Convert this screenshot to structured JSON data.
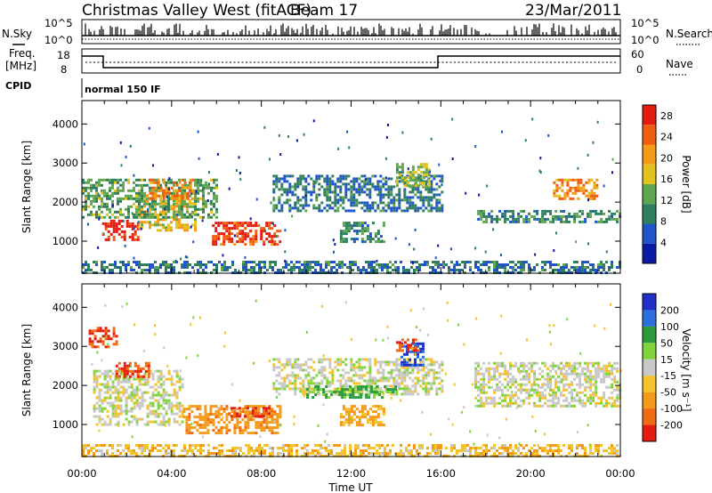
{
  "header": {
    "title": "Christmas Valley West (fitACF)",
    "beam": "Beam 17",
    "date": "23/Mar/2011"
  },
  "summary_panels": {
    "nsky_label": "N.Sky",
    "nsearch_label": "N.Search",
    "freq_label_1": "Freq.",
    "freq_label_2": "[MHz]",
    "nave_label": "Nave",
    "cpid_label": "CPID",
    "cpid_value": "normal 150 IF",
    "noise_left_ticks": [
      "10^5",
      "10^0"
    ],
    "noise_right_ticks": [
      "10^5",
      "10^0"
    ],
    "freq_ticks": [
      "18",
      "8"
    ],
    "nave_ticks": [
      "60",
      "0"
    ]
  },
  "colors": {
    "power_scale": [
      "#0a1aa6",
      "#1f55c8",
      "#2f7f5e",
      "#60a550",
      "#e3c21e",
      "#f39a17",
      "#f05c10",
      "#e51b0e"
    ],
    "velocity_scale": [
      "#1f2fc8",
      "#2c6fe0",
      "#2b9b3d",
      "#7ed43a",
      "#c8c8c8",
      "#f4c22a",
      "#f59a18",
      "#f06a12",
      "#e51b0e"
    ]
  },
  "chart_data": [
    {
      "type": "heatmap",
      "name_hint": "power",
      "xlabel": "Time UT",
      "ylabel": "Slant Range [km]",
      "x_ticks": [
        "00:00",
        "04:00",
        "08:00",
        "12:00",
        "16:00",
        "20:00",
        "00:00"
      ],
      "xlim_hours": [
        0,
        24
      ],
      "y_ticks": [
        1000,
        2000,
        3000,
        4000
      ],
      "ylim_km": [
        180,
        4600
      ],
      "colorbar_label": "Power [dB]",
      "colorbar_ticks": [
        4,
        8,
        12,
        16,
        20,
        24,
        28
      ],
      "colorbar_range": [
        0,
        30
      ],
      "echo_regions": [
        {
          "t0": 0.9,
          "t1": 2.5,
          "r0": 1050,
          "r1": 1550,
          "value": 28
        },
        {
          "t0": 2.5,
          "t1": 5.0,
          "r0": 1300,
          "r1": 2200,
          "value": 18
        },
        {
          "t0": 5.8,
          "t1": 8.8,
          "r0": 900,
          "r1": 1500,
          "value": 26
        },
        {
          "t0": 0.0,
          "t1": 6.0,
          "r0": 1600,
          "r1": 2600,
          "value": 12
        },
        {
          "t0": 3.0,
          "t1": 5.0,
          "r0": 2100,
          "r1": 2600,
          "value": 22
        },
        {
          "t0": 8.5,
          "t1": 16.0,
          "r0": 1800,
          "r1": 2700,
          "value": 8
        },
        {
          "t0": 11.5,
          "t1": 13.5,
          "r0": 1000,
          "r1": 1500,
          "value": 10
        },
        {
          "t0": 14.0,
          "t1": 15.5,
          "r0": 2400,
          "r1": 3000,
          "value": 14
        },
        {
          "t0": 17.5,
          "t1": 24.0,
          "r0": 1500,
          "r1": 1800,
          "value": 10
        },
        {
          "t0": 21.0,
          "t1": 23.0,
          "r0": 2100,
          "r1": 2600,
          "value": 22
        },
        {
          "t0": 0.0,
          "t1": 24.0,
          "r0": 200,
          "r1": 500,
          "value": 8
        }
      ]
    },
    {
      "type": "heatmap",
      "name_hint": "velocity",
      "xlabel": "Time UT",
      "ylabel": "Slant Range [km]",
      "x_ticks": [
        "00:00",
        "04:00",
        "08:00",
        "12:00",
        "16:00",
        "20:00",
        "00:00"
      ],
      "xlim_hours": [
        0,
        24
      ],
      "y_ticks": [
        1000,
        2000,
        3000,
        4000
      ],
      "ylim_km": [
        180,
        4600
      ],
      "colorbar_label": "Velocity [m s⁻¹]",
      "colorbar_ticks": [
        200,
        100,
        50,
        15,
        -15,
        -50,
        -100,
        -200
      ],
      "echo_regions": [
        {
          "t0": 0.5,
          "t1": 4.5,
          "r0": 1000,
          "r1": 2400,
          "value": 0
        },
        {
          "t0": 4.5,
          "t1": 8.8,
          "r0": 800,
          "r1": 1500,
          "value": -80
        },
        {
          "t0": 6.5,
          "t1": 8.5,
          "r0": 1200,
          "r1": 1450,
          "value": -200
        },
        {
          "t0": 1.5,
          "t1": 3.0,
          "r0": 2200,
          "r1": 2600,
          "value": -200
        },
        {
          "t0": 0.3,
          "t1": 1.5,
          "r0": 3000,
          "r1": 3500,
          "value": -200
        },
        {
          "t0": 8.5,
          "t1": 16.0,
          "r0": 1800,
          "r1": 2700,
          "value": 0
        },
        {
          "t0": 10.0,
          "t1": 14.0,
          "r0": 1700,
          "r1": 2000,
          "value": 60
        },
        {
          "t0": 11.5,
          "t1": 13.5,
          "r0": 1000,
          "r1": 1500,
          "value": -60
        },
        {
          "t0": 14.2,
          "t1": 15.2,
          "r0": 2500,
          "r1": 3100,
          "value": 200
        },
        {
          "t0": 14.0,
          "t1": 15.0,
          "r0": 2900,
          "r1": 3200,
          "value": -200
        },
        {
          "t0": 17.5,
          "t1": 24.0,
          "r0": 1500,
          "r1": 2600,
          "value": 0
        },
        {
          "t0": 0.0,
          "t1": 24.0,
          "r0": 200,
          "r1": 500,
          "value": -40
        }
      ]
    }
  ]
}
